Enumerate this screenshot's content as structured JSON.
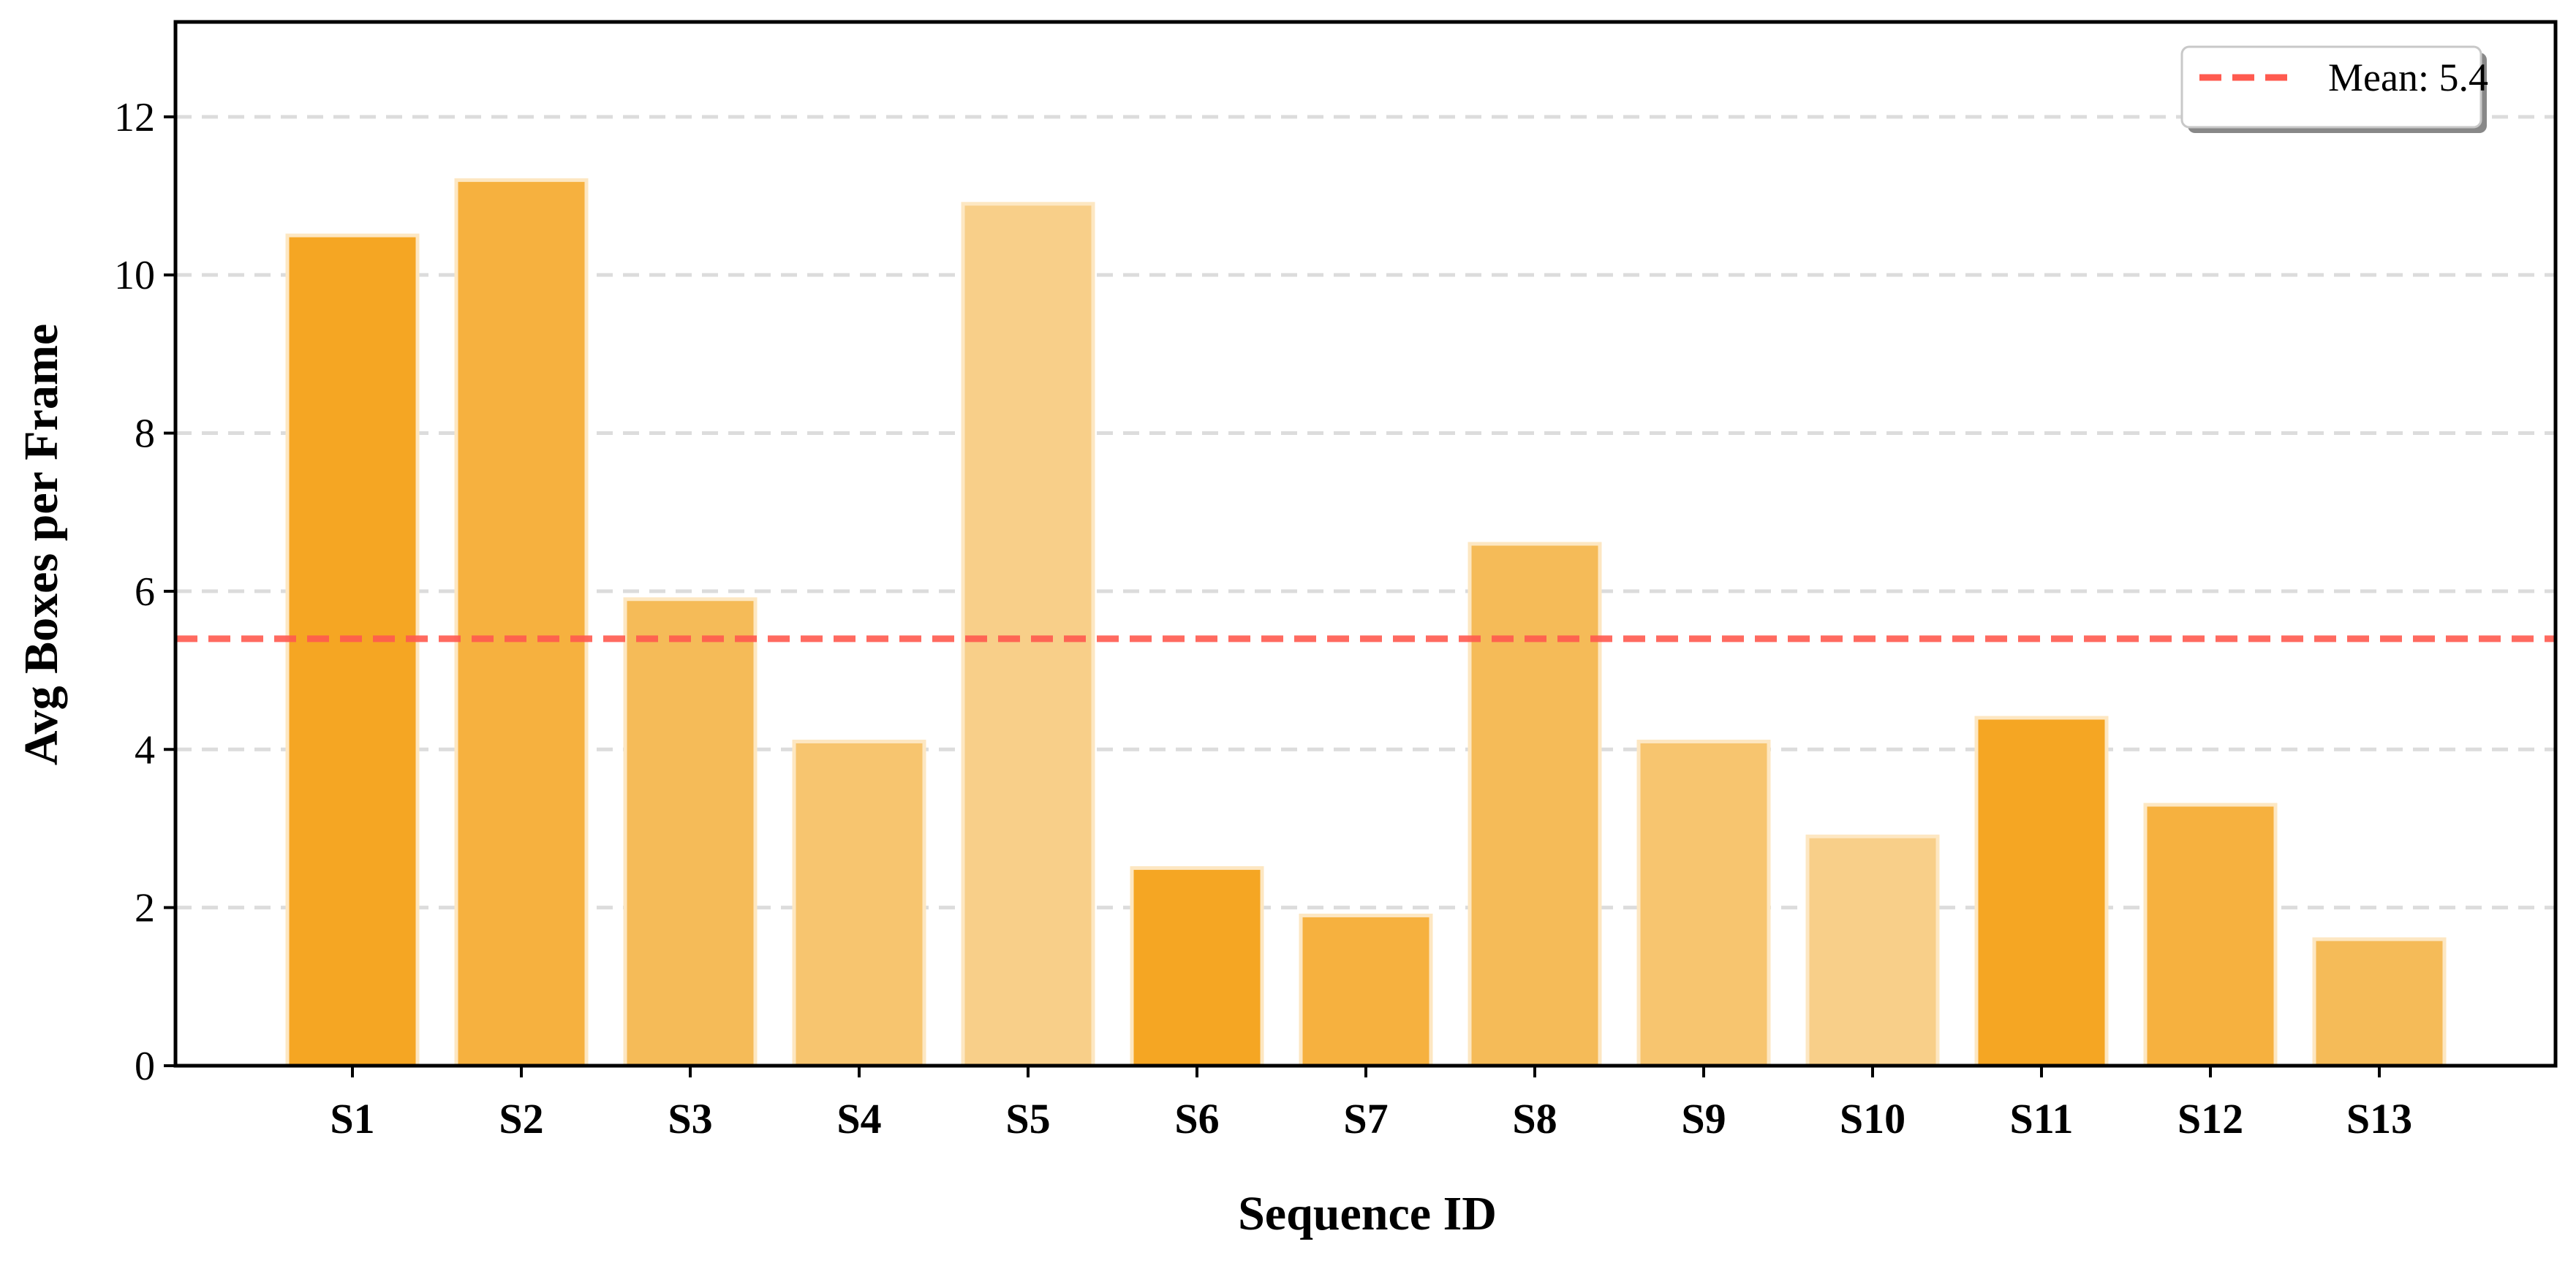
{
  "chart_data": {
    "type": "bar",
    "title": "",
    "xlabel": "Sequence ID",
    "ylabel": "Avg Boxes per Frame",
    "categories": [
      "S1",
      "S2",
      "S3",
      "S4",
      "S5",
      "S6",
      "S7",
      "S8",
      "S9",
      "S10",
      "S11",
      "S12",
      "S13"
    ],
    "values": [
      10.5,
      11.2,
      5.9,
      4.1,
      10.9,
      2.5,
      1.9,
      6.6,
      4.1,
      2.9,
      4.4,
      3.3,
      1.6
    ],
    "bar_colors": [
      "#f5a623",
      "#f6b13f",
      "#f5bb58",
      "#f7c56f",
      "#f8cf89",
      "#f5a623",
      "#f6b13f",
      "#f5bb58",
      "#f7c56f",
      "#f8cf89",
      "#f5a623",
      "#f6b13f",
      "#f5bb58"
    ],
    "ylim": [
      0,
      13.2
    ],
    "yticks": [
      0,
      2,
      4,
      6,
      8,
      10,
      12
    ],
    "grid": true,
    "mean_line": {
      "value": 5.4,
      "label": "Mean: 5.4",
      "color": "#ff5a4f"
    },
    "legend": {
      "placement": "top-right"
    }
  }
}
